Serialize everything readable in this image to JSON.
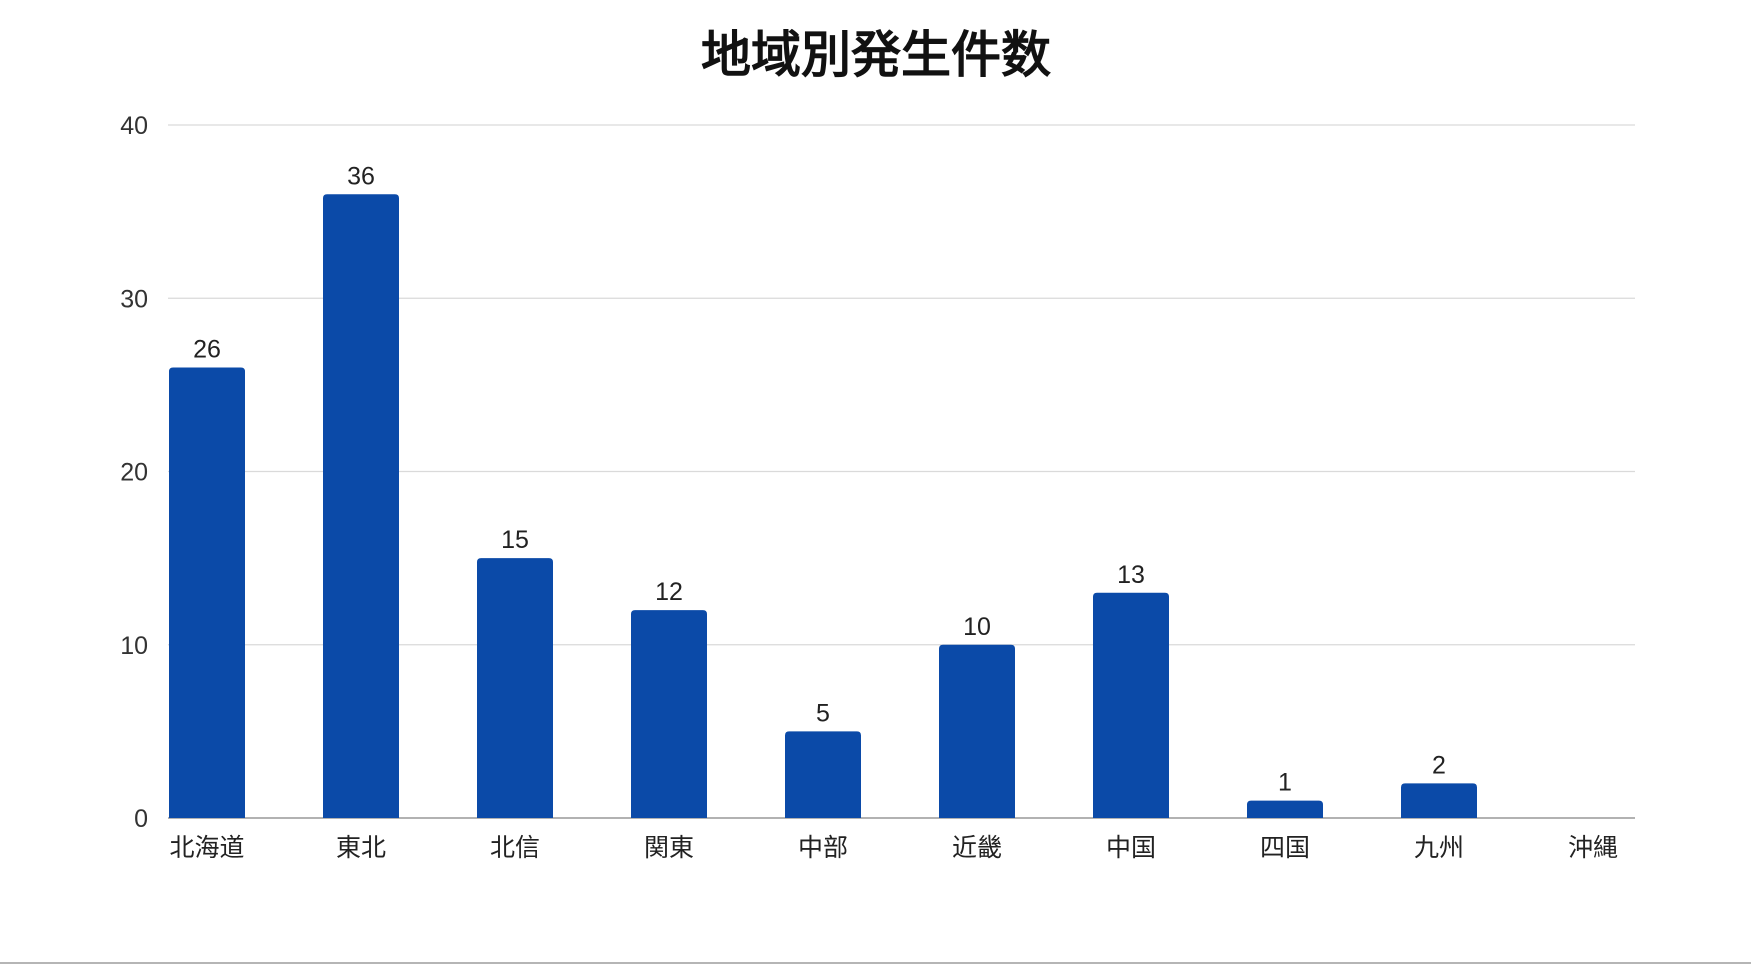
{
  "chart_data": {
    "type": "bar",
    "title": "地域別発生件数",
    "xlabel": "",
    "ylabel": "",
    "categories": [
      "北海道",
      "東北",
      "北信",
      "関東",
      "中部",
      "近畿",
      "中国",
      "四国",
      "九州",
      "沖縄"
    ],
    "values": [
      26,
      36,
      15,
      12,
      5,
      10,
      13,
      1,
      2,
      0
    ],
    "data_labels": [
      "26",
      "36",
      "15",
      "12",
      "5",
      "10",
      "13",
      "1",
      "2",
      ""
    ],
    "ylim": [
      0,
      40
    ],
    "yticks": [
      0,
      10,
      20,
      30,
      40
    ],
    "ytick_labels": [
      "0",
      "10",
      "20",
      "30",
      "40"
    ],
    "grid": true,
    "legend": "none",
    "bar_color": "#0b4aa8"
  }
}
